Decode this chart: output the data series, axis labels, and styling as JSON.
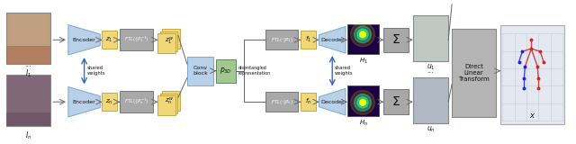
{
  "bg_color": "#ffffff",
  "encoder_color": "#b8d0e8",
  "encoder_edge": "#7aaacc",
  "box_yellow": "#f0d878",
  "box_yellow_edge": "#c8a840",
  "box_gray": "#a8a8a8",
  "box_gray_edge": "#787878",
  "box_green": "#a0c890",
  "box_green_edge": "#608860",
  "conv_block_color": "#b8d0e8",
  "conv_block_edge": "#7aaacc",
  "arrow_color": "#3366cc",
  "text_color": "#111111",
  "label_I1": "$I_1$",
  "label_In": "$I_n$",
  "label_z1": "$z_1$",
  "label_zn": "$z_n$",
  "label_z1w": "$z_1^w$",
  "label_znw": "$z_n^w$",
  "label_f1": "$f_1$",
  "label_fn": "$f_n$",
  "label_H1": "$H_1$",
  "label_Hn": "$H_n$",
  "label_u1": "$u_1$",
  "label_un": "$u_n$",
  "label_x": "$x$",
  "label_encoder": "Encoder",
  "label_decoder": "Decoder",
  "label_ftl1": "$FTL(\\cdot|P_1^{-1})$",
  "label_ftln": "$FTL(\\cdot|P_n^{-1})$",
  "label_ftl1r": "$FTL(\\cdot|P_1)$",
  "label_ftlnr": "$FTL(\\cdot|P_n)$",
  "label_conv": "Conv\nblock",
  "label_p3d": "$p_{3D}$",
  "label_disentangled": "disentangled\nrepresentation",
  "label_shared1": "shared\nweights",
  "label_shared2": "shared\nweights",
  "label_sum": "$\\Sigma$",
  "label_dlt": "Direct\nLinear\nTransform",
  "heatmap_color": "#200050",
  "heatmap_spot1": "#ffff00",
  "heatmap_spot2": "#00ff80",
  "img_top_color": "#b0785050",
  "img_bot_color": "#905060a0"
}
